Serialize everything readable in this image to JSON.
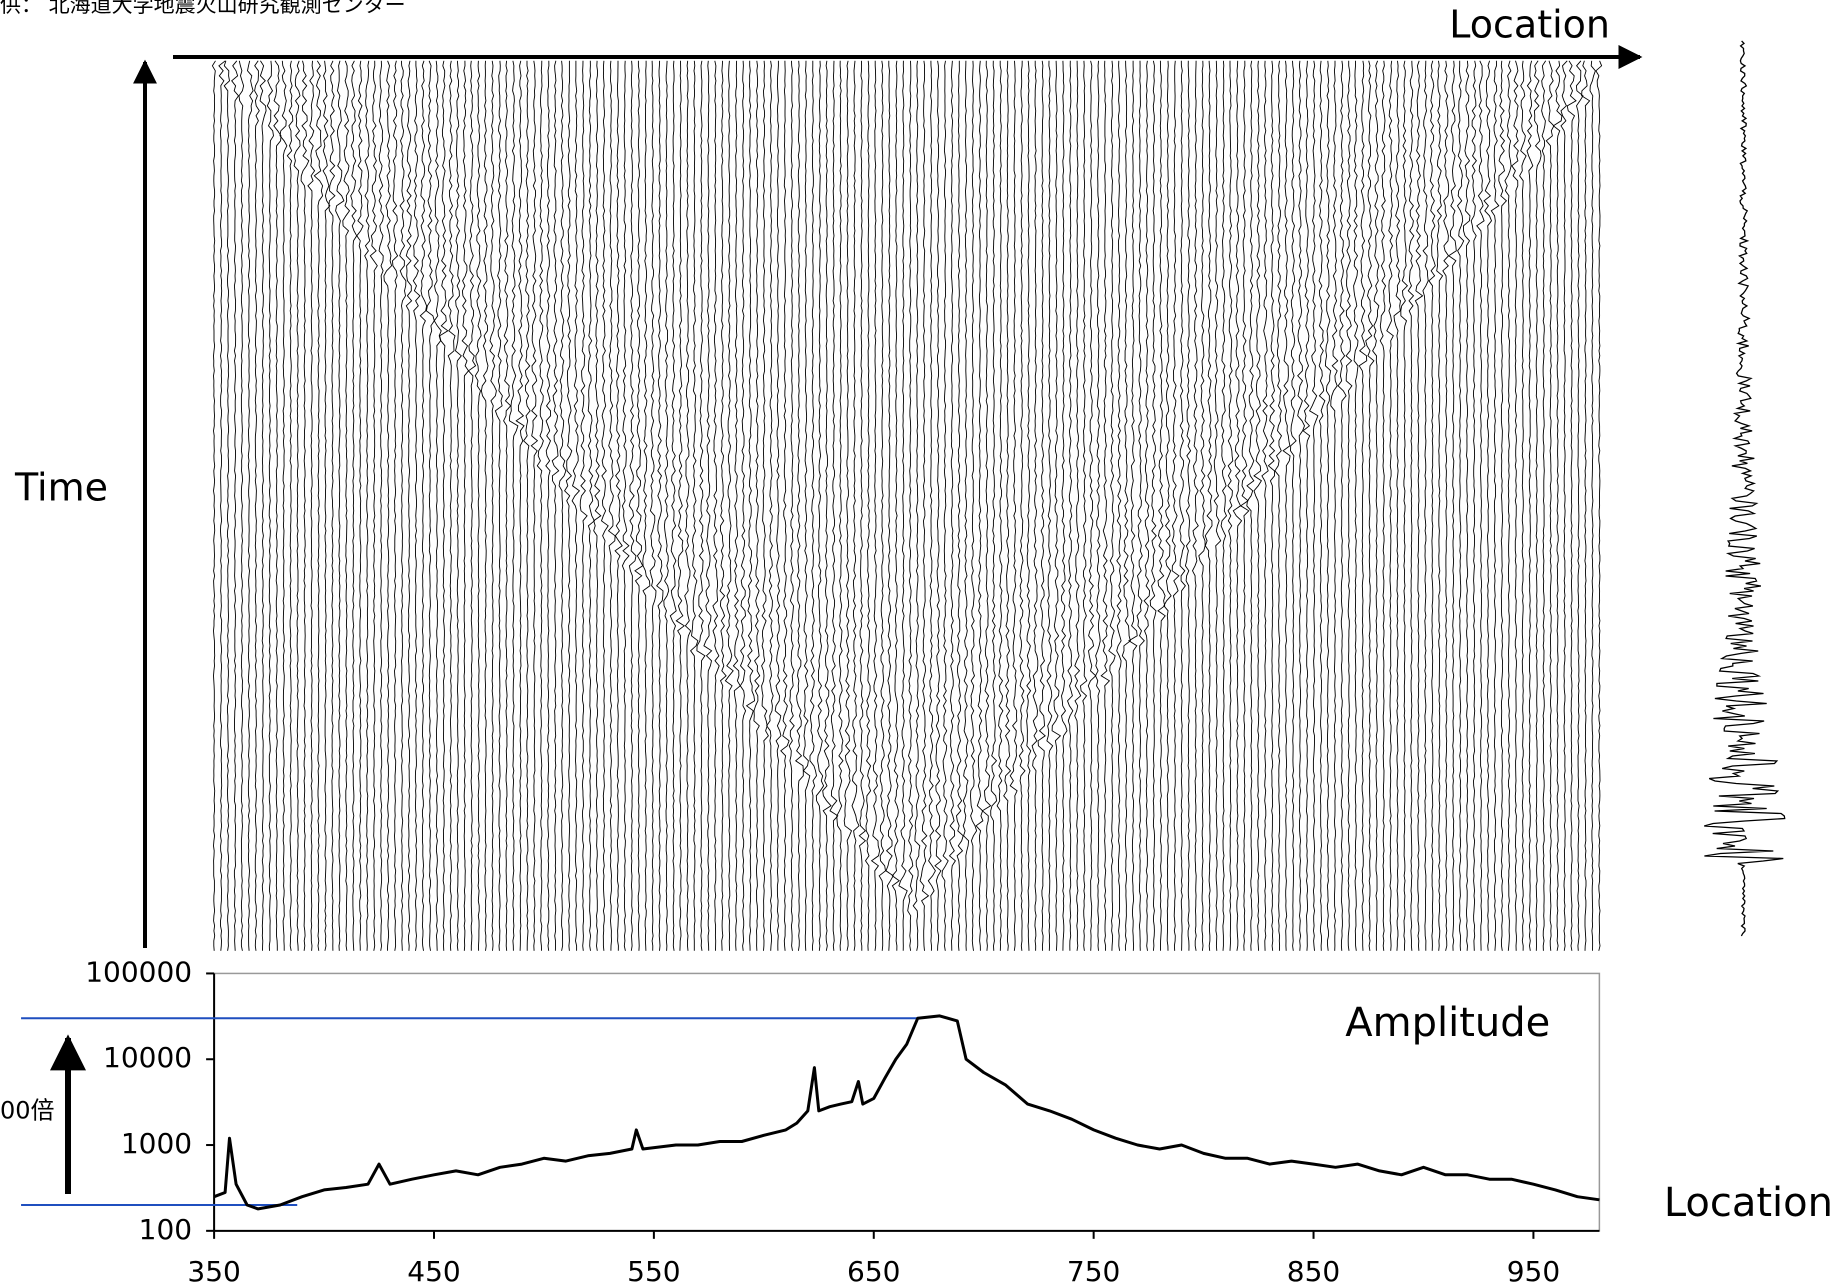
{
  "credit": "供： 北海道大学地震火山研究観測センター",
  "section": {
    "x_label": "Location",
    "y_label": "Time"
  },
  "chart_data": {
    "type": "line",
    "title": "Amplitude",
    "x_label": "Location",
    "annotation": "00倍",
    "annotation_color": "#e00000",
    "reference_lines": [
      30000,
      200
    ],
    "reference_color": "#1f4fbf",
    "log_scale": true,
    "grid": false,
    "xlim": [
      350,
      980
    ],
    "xticks": [
      350,
      450,
      550,
      650,
      750,
      850,
      950
    ],
    "ylim": [
      100,
      100000
    ],
    "yticks": [
      100,
      1000,
      10000,
      100000
    ],
    "series": [
      {
        "name": "Amplitude",
        "color": "#000000",
        "x": [
          350,
          355,
          357,
          360,
          365,
          370,
          380,
          390,
          400,
          410,
          420,
          425,
          430,
          440,
          450,
          460,
          470,
          480,
          490,
          500,
          510,
          520,
          530,
          540,
          542,
          545,
          560,
          570,
          580,
          590,
          600,
          610,
          615,
          620,
          623,
          625,
          630,
          635,
          640,
          643,
          645,
          650,
          655,
          660,
          665,
          670,
          680,
          688,
          692,
          700,
          710,
          720,
          730,
          740,
          750,
          760,
          770,
          780,
          790,
          800,
          810,
          820,
          830,
          840,
          850,
          860,
          870,
          880,
          890,
          900,
          910,
          920,
          930,
          940,
          950,
          960,
          970,
          980
        ],
        "values": [
          250,
          280,
          1200,
          350,
          200,
          180,
          200,
          250,
          300,
          320,
          350,
          600,
          350,
          400,
          450,
          500,
          450,
          550,
          600,
          700,
          650,
          750,
          800,
          900,
          1500,
          900,
          1000,
          1000,
          1100,
          1100,
          1300,
          1500,
          1800,
          2500,
          8000,
          2500,
          2800,
          3000,
          3200,
          5500,
          3000,
          3500,
          6000,
          10000,
          15000,
          30000,
          32000,
          28000,
          10000,
          7000,
          5000,
          3000,
          2500,
          2000,
          1500,
          1200,
          1000,
          900,
          1000,
          800,
          700,
          700,
          600,
          650,
          600,
          550,
          600,
          500,
          450,
          550,
          450,
          450,
          400,
          400,
          350,
          300,
          250,
          230
        ]
      }
    ]
  }
}
